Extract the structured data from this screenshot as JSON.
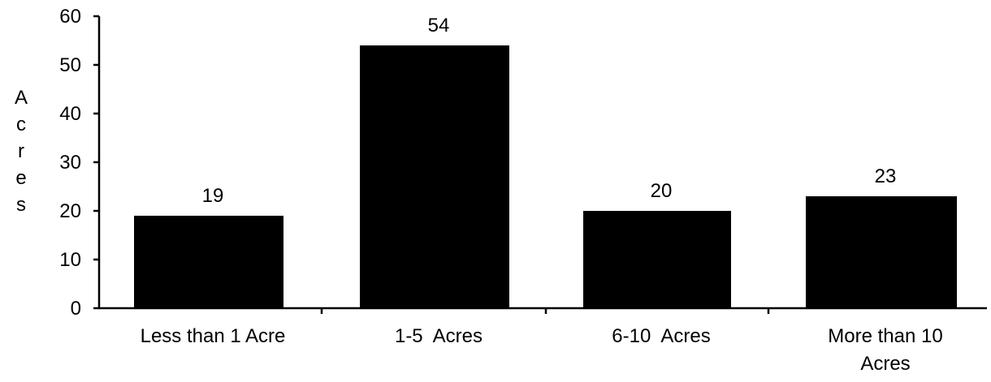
{
  "chart_data": {
    "type": "bar",
    "title": "",
    "xlabel": "",
    "ylabel": "Acres",
    "categories": [
      [
        "Less than 1 Acre"
      ],
      [
        "1-5  Acres"
      ],
      [
        "6-10  Acres"
      ],
      [
        "More than 10",
        "Acres"
      ]
    ],
    "values": [
      19,
      54,
      20,
      23
    ],
    "ylim": [
      0,
      60
    ],
    "yticks": [
      0,
      10,
      20,
      30,
      40,
      50,
      60
    ],
    "grid": false,
    "legend": "none",
    "bar_color": "#000000"
  }
}
